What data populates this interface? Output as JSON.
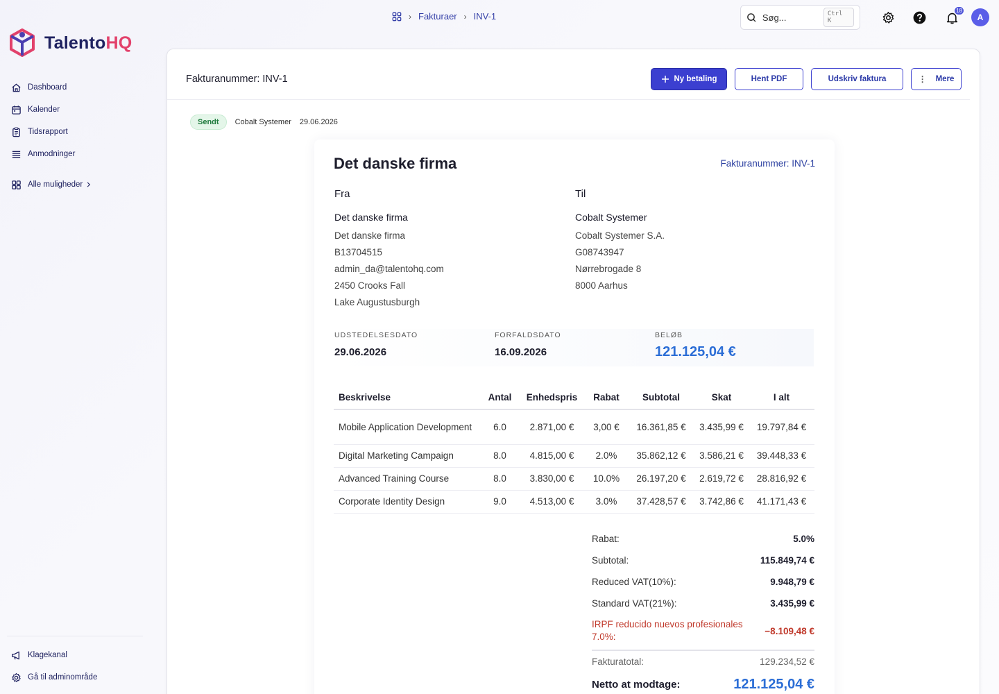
{
  "app": {
    "brand_main": "Talento",
    "brand_accent": "HQ"
  },
  "sidebar": {
    "items": [
      {
        "label": "Dashboard",
        "icon": "home-icon"
      },
      {
        "label": "Kalender",
        "icon": "calendar-icon"
      },
      {
        "label": "Tidsrapport",
        "icon": "clipboard-icon"
      },
      {
        "label": "Anmodninger",
        "icon": "list-icon"
      }
    ],
    "all_options": "Alle muligheder",
    "bottom": [
      {
        "label": "Klagekanal",
        "icon": "megaphone-icon"
      },
      {
        "label": "Gå til adminområde",
        "icon": "gear-icon"
      }
    ]
  },
  "breadcrumb": {
    "items": [
      "Fakturaer",
      "INV-1"
    ]
  },
  "search": {
    "placeholder": "Søg...",
    "shortcut": "Ctrl K"
  },
  "notifications": {
    "count": "18"
  },
  "user": {
    "initial": "A"
  },
  "header": {
    "title": "Fakturanummer: INV-1"
  },
  "actions": {
    "new_payment": "Ny betaling",
    "download_pdf": "Hent PDF",
    "print": "Udskriv faktura",
    "more": "Mere"
  },
  "meta": {
    "status": "Sendt",
    "client": "Cobalt Systemer",
    "date": "29.06.2026"
  },
  "invoice": {
    "company": "Det danske firma",
    "number": "Fakturanummer: INV-1",
    "from": {
      "heading": "Fra",
      "name": "Det danske firma",
      "lines": [
        "Det danske firma",
        "B13704515",
        "admin_da@talentohq.com",
        "2450 Crooks Fall",
        "Lake Augustusburgh"
      ]
    },
    "to": {
      "heading": "Til",
      "name": "Cobalt Systemer",
      "lines": [
        "Cobalt Systemer S.A.",
        "G08743947",
        "Nørrebrogade 8",
        "8000 Aarhus"
      ]
    },
    "dates": {
      "issue_label": "UDSTEDELSESDATO",
      "issue": "29.06.2026",
      "due_label": "FORFALDSDATO",
      "due": "16.09.2026",
      "amount_label": "BELØB",
      "amount": "121.125,04 €"
    },
    "table": {
      "headers": [
        "Beskrivelse",
        "Antal",
        "Enhedspris",
        "Rabat",
        "Subtotal",
        "Skat",
        "I alt"
      ],
      "rows": [
        [
          "Mobile Application Development",
          "6.0",
          "2.871,00 €",
          "3,00 €",
          "16.361,85 €",
          "3.435,99 €",
          "19.797,84 €"
        ],
        [
          "Digital Marketing Campaign",
          "8.0",
          "4.815,00 €",
          "2.0%",
          "35.862,12 €",
          "3.586,21 €",
          "39.448,33 €"
        ],
        [
          "Advanced Training Course",
          "8.0",
          "3.830,00 €",
          "10.0%",
          "26.197,20 €",
          "2.619,72 €",
          "28.816,92 €"
        ],
        [
          "Corporate Identity Design",
          "9.0",
          "4.513,00 €",
          "3.0%",
          "37.428,57 €",
          "3.742,86 €",
          "41.171,43 €"
        ]
      ]
    },
    "totals": {
      "discount_label": "Rabat:",
      "discount": "5.0%",
      "subtotal_label": "Subtotal:",
      "subtotal": "115.849,74 €",
      "reduced_vat_label": "Reduced VAT(10%):",
      "reduced_vat": "9.948,79 €",
      "standard_vat_label": "Standard VAT(21%):",
      "standard_vat": "3.435,99 €",
      "irpf_label": "IRPF reducido nuevos profesionales 7.0%:",
      "irpf": "−8.109,48 €",
      "invoice_total_label": "Fakturatotal:",
      "invoice_total": "129.234,52 €",
      "net_label": "Netto at modtage:",
      "net": "121.125,04 €"
    }
  }
}
